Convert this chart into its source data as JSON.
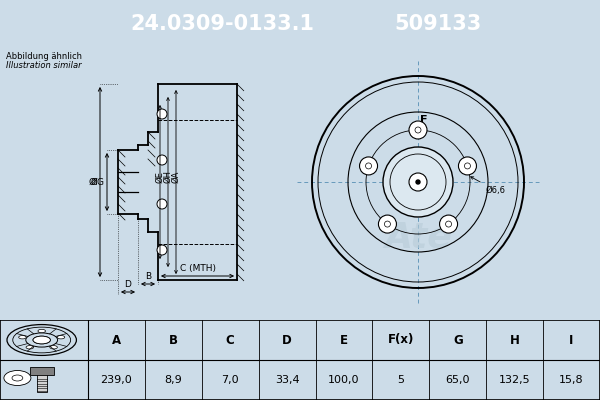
{
  "title_part": "24.0309-0133.1",
  "title_ref": "509133",
  "header_bg": "#1a6fad",
  "header_text_color": "#ffffff",
  "bg_color": "#ccdce8",
  "diagram_bg": "#dce8f0",
  "note_text": [
    "Abbildung ähnlich",
    "Illustration similar"
  ],
  "table_headers": [
    "A",
    "B",
    "C",
    "D",
    "E",
    "F(x)",
    "G",
    "H",
    "I"
  ],
  "table_values": [
    "239,0",
    "8,9",
    "7,0",
    "33,4",
    "100,0",
    "5",
    "65,0",
    "132,5",
    "15,8"
  ],
  "line_color": "#000000",
  "crosshair_color": "#6699bb",
  "watermark_color": "#b8ccd8",
  "hatch_color": "#000000"
}
